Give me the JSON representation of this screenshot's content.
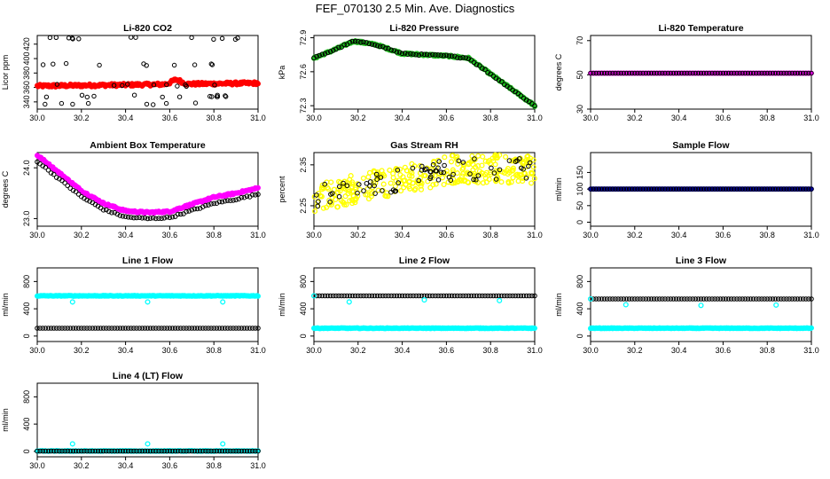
{
  "figure": {
    "title": "FEF_070130  2.5 Min. Ave. Diagnostics"
  },
  "chart_data": [
    {
      "id": "co2",
      "type": "scatter",
      "title": "Li-820 CO2",
      "xlabel": "",
      "ylabel": "Licor ppm",
      "xlim": [
        30.0,
        31.0
      ],
      "ylim": [
        330,
        432
      ],
      "xticks": [
        "30.0",
        "30.2",
        "30.4",
        "30.6",
        "30.8",
        "31.0"
      ],
      "yticks": [
        "340",
        "360",
        "380",
        "400",
        "420"
      ],
      "series": [
        {
          "color": "#ff0000",
          "style": "filled",
          "x": [
            30.0,
            31.0
          ],
          "y_base": [
            362,
            366
          ],
          "y_jitter": 2,
          "bump": {
            "x": 30.63,
            "height": 6,
            "width": 0.03
          }
        },
        {
          "color": "#000000",
          "style": "open",
          "levels": [
            428,
            392,
            363,
            348,
            337
          ]
        }
      ]
    },
    {
      "id": "pressure",
      "type": "scatter",
      "title": "Li-820 Pressure",
      "xlabel": "",
      "ylabel": "kPa",
      "xlim": [
        30.0,
        31.0
      ],
      "ylim": [
        72.27,
        72.92
      ],
      "xticks": [
        "30.0",
        "30.2",
        "30.4",
        "30.6",
        "30.8",
        "31.0"
      ],
      "yticks": [
        "72.3",
        "72.6",
        "72.9"
      ],
      "yticks_numeric": [
        72.3,
        72.6,
        72.9
      ],
      "curve_x": [
        30.0,
        30.1,
        30.18,
        30.28,
        30.4,
        30.5,
        30.6,
        30.7,
        30.8,
        30.9,
        31.0
      ],
      "curve_y": [
        72.72,
        72.8,
        72.87,
        72.84,
        72.76,
        72.75,
        72.74,
        72.72,
        72.58,
        72.44,
        72.3
      ],
      "series": [
        {
          "color": "#20c020",
          "style": "filled"
        },
        {
          "color": "#000000",
          "style": "open"
        }
      ]
    },
    {
      "id": "temperature",
      "type": "scatter",
      "title": "Li-820 Temperature",
      "xlabel": "",
      "ylabel": "degrees C",
      "xlim": [
        30.0,
        31.0
      ],
      "ylim": [
        30,
        73
      ],
      "xticks": [
        "30.0",
        "30.2",
        "30.4",
        "30.6",
        "30.8",
        "31.0"
      ],
      "yticks": [
        "30",
        "50",
        "70"
      ],
      "yticks_numeric": [
        30,
        50,
        70
      ],
      "constant": 51,
      "series": [
        {
          "color": "#ff00ff",
          "style": "filled"
        },
        {
          "color": "#000000",
          "style": "open"
        }
      ]
    },
    {
      "id": "box_temp",
      "type": "scatter",
      "title": "Ambient Box Temperature",
      "xlabel": "",
      "ylabel": "degrees C",
      "xlim": [
        30.0,
        31.0
      ],
      "ylim": [
        22.85,
        24.3
      ],
      "xticks": [
        "30.0",
        "30.2",
        "30.4",
        "30.6",
        "30.8",
        "31.0"
      ],
      "yticks": [
        "23.0",
        "24.0"
      ],
      "yticks_numeric": [
        23.0,
        24.0
      ],
      "curve_x": [
        30.0,
        30.1,
        30.2,
        30.3,
        30.4,
        30.5,
        30.6,
        30.7,
        30.8,
        30.9,
        31.0
      ],
      "curve_y": [
        24.25,
        23.9,
        23.55,
        23.3,
        23.15,
        23.12,
        23.14,
        23.28,
        23.42,
        23.5,
        23.6
      ],
      "black_offset": -0.12,
      "series": [
        {
          "color": "#ff00ff",
          "style": "filled"
        },
        {
          "color": "#000000",
          "style": "open"
        }
      ]
    },
    {
      "id": "rh",
      "type": "scatter",
      "title": "Gas Stream RH",
      "xlabel": "",
      "ylabel": "percent",
      "xlim": [
        30.0,
        31.0
      ],
      "ylim": [
        2.2,
        2.38
      ],
      "xticks": [
        "30.0",
        "30.2",
        "30.4",
        "30.6",
        "30.8",
        "31.0"
      ],
      "yticks": [
        "2.25",
        "2.35"
      ],
      "yticks_numeric": [
        2.25,
        2.35
      ],
      "trend": [
        2.27,
        2.34
      ],
      "spread": 0.035,
      "series": [
        {
          "color": "#ffff00",
          "style": "open-thick"
        },
        {
          "color": "#000000",
          "style": "open"
        }
      ]
    },
    {
      "id": "sample_flow",
      "type": "scatter",
      "title": "Sample Flow",
      "xlabel": "",
      "ylabel": "ml/min",
      "xlim": [
        30.0,
        31.0
      ],
      "ylim": [
        -12,
        210
      ],
      "xticks": [
        "30.0",
        "30.2",
        "30.4",
        "30.6",
        "30.8",
        "31.0"
      ],
      "yticks": [
        "0",
        "50",
        "100",
        "150"
      ],
      "yticks_numeric": [
        0,
        50,
        100,
        150
      ],
      "constant": 100,
      "series": [
        {
          "color": "#0000c0",
          "style": "filled"
        },
        {
          "color": "#000000",
          "style": "open"
        }
      ]
    },
    {
      "id": "line1",
      "type": "scatter",
      "title": "Line 1 Flow",
      "xlabel": "",
      "ylabel": "ml/min",
      "xlim": [
        30.0,
        31.0
      ],
      "ylim": [
        -80,
        1000
      ],
      "xticks": [
        "30.0",
        "30.2",
        "30.4",
        "30.6",
        "30.8",
        "31.0"
      ],
      "yticks": [
        "0",
        "400",
        "800"
      ],
      "yticks_numeric": [
        0,
        400,
        800
      ],
      "cyan_level": 590,
      "black_level": 115,
      "outliers": [
        [
          30.16,
          500
        ],
        [
          30.5,
          500
        ],
        [
          30.84,
          500
        ]
      ],
      "outlier_series": 0,
      "series": [
        {
          "color": "#00ffff",
          "style": "filled"
        },
        {
          "color": "#000000",
          "style": "open"
        }
      ]
    },
    {
      "id": "line2",
      "type": "scatter",
      "title": "Line 2 Flow",
      "xlabel": "",
      "ylabel": "ml/min",
      "xlim": [
        30.0,
        31.0
      ],
      "ylim": [
        -80,
        1000
      ],
      "xticks": [
        "30.0",
        "30.2",
        "30.4",
        "30.6",
        "30.8",
        "31.0"
      ],
      "yticks": [
        "0",
        "400",
        "800"
      ],
      "yticks_numeric": [
        0,
        400,
        800
      ],
      "cyan_level": 115,
      "black_level": 590,
      "outliers": [
        [
          30.16,
          500
        ],
        [
          30.5,
          530
        ],
        [
          30.84,
          520
        ]
      ],
      "outlier_series": 0,
      "series": [
        {
          "color": "#00ffff",
          "style": "filled"
        },
        {
          "color": "#000000",
          "style": "open"
        }
      ]
    },
    {
      "id": "line3",
      "type": "scatter",
      "title": "Line 3 Flow",
      "xlabel": "",
      "ylabel": "ml/min",
      "xlim": [
        30.0,
        31.0
      ],
      "ylim": [
        -80,
        1000
      ],
      "xticks": [
        "30.0",
        "30.2",
        "30.4",
        "30.6",
        "30.8",
        "31.0"
      ],
      "yticks": [
        "0",
        "400",
        "800"
      ],
      "yticks_numeric": [
        0,
        400,
        800
      ],
      "cyan_level": 115,
      "black_level": 545,
      "outliers": [
        [
          30.16,
          460
        ],
        [
          30.5,
          450
        ],
        [
          30.84,
          455
        ]
      ],
      "outlier_series": 0,
      "series": [
        {
          "color": "#00ffff",
          "style": "filled"
        },
        {
          "color": "#000000",
          "style": "open"
        }
      ]
    },
    {
      "id": "line4",
      "type": "scatter",
      "title": "Line 4 (LT) Flow",
      "xlabel": "",
      "ylabel": "ml/min",
      "xlim": [
        30.0,
        31.0
      ],
      "ylim": [
        -80,
        1000
      ],
      "xticks": [
        "30.0",
        "30.2",
        "30.4",
        "30.6",
        "30.8",
        "31.0"
      ],
      "yticks": [
        "0",
        "400",
        "800"
      ],
      "yticks_numeric": [
        0,
        400,
        800
      ],
      "cyan_level": 5,
      "black_level": 5,
      "outliers": [
        [
          30.16,
          110
        ],
        [
          30.5,
          110
        ],
        [
          30.84,
          110
        ]
      ],
      "outlier_series": 0,
      "series": [
        {
          "color": "#00ffff",
          "style": "filled"
        },
        {
          "color": "#000000",
          "style": "open"
        }
      ]
    }
  ]
}
